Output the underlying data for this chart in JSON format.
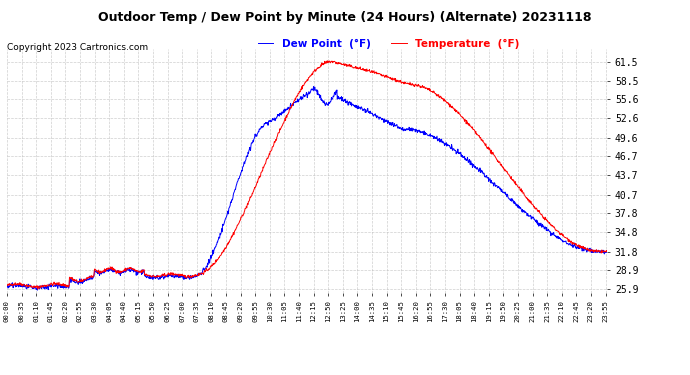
{
  "title": "Outdoor Temp / Dew Point by Minute (24 Hours) (Alternate) 20231118",
  "copyright": "Copyright 2023 Cartronics.com",
  "legend_dew": "Dew Point  (°F)",
  "legend_temp": "Temperature  (°F)",
  "dew_color": "blue",
  "temp_color": "red",
  "yticks": [
    25.9,
    28.9,
    31.8,
    34.8,
    37.8,
    40.7,
    43.7,
    46.7,
    49.6,
    52.6,
    55.6,
    58.5,
    61.5
  ],
  "ymin": 25.4,
  "ymax": 63.5,
  "background_color": "#ffffff",
  "grid_color": "#bbbbbb",
  "xtick_interval": 35,
  "num_minutes": 1440
}
